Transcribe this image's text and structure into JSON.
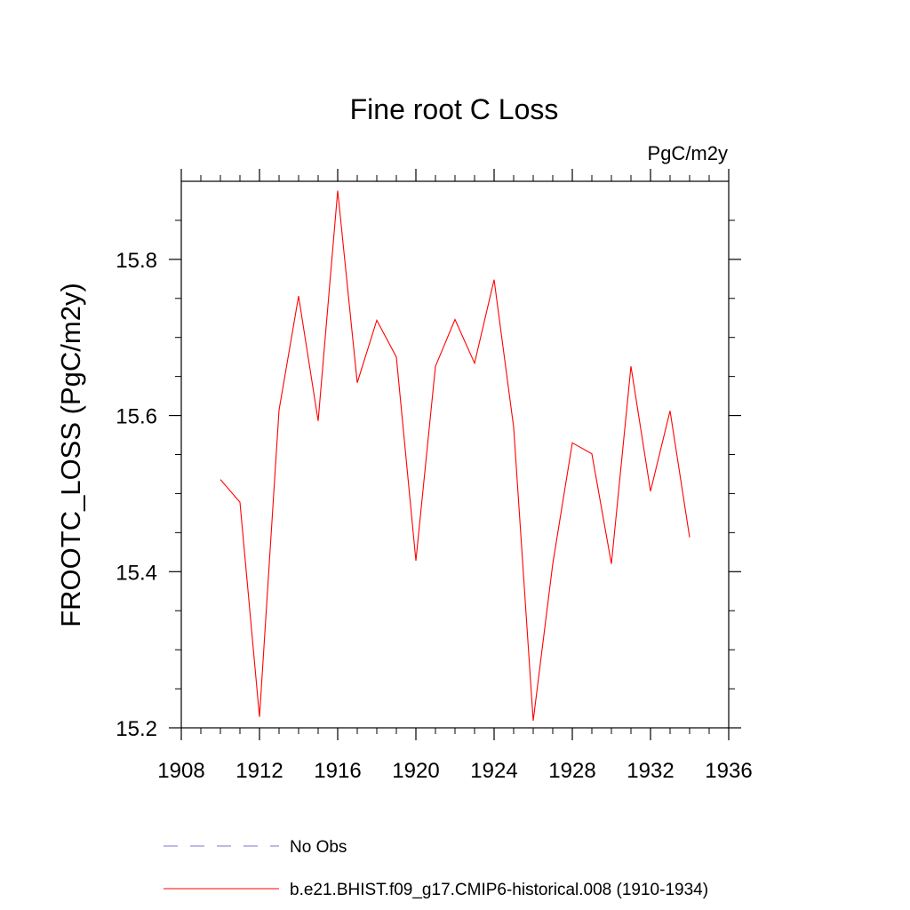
{
  "chart_data": {
    "type": "line",
    "title": "Fine root C Loss",
    "units_label": "PgC/m2y",
    "xlabel": "",
    "ylabel": "FROOTC_LOSS  (PgC/m2y)",
    "xlim": [
      1908,
      1936
    ],
    "ylim": [
      15.2,
      15.9
    ],
    "x_ticks": [
      1908,
      1912,
      1916,
      1920,
      1924,
      1928,
      1932,
      1936
    ],
    "x_tick_labels": [
      "1908",
      "1912",
      "1916",
      "1920",
      "1924",
      "1928",
      "1932",
      "1936"
    ],
    "y_ticks": [
      15.2,
      15.4,
      15.6,
      15.8
    ],
    "y_tick_labels": [
      "15.2",
      "15.4",
      "15.6",
      "15.8"
    ],
    "grid": false,
    "legend_position": "bottom",
    "series": [
      {
        "name": "b.e21.BHIST.f09_g17.CMIP6-historical.008 (1910-1934)",
        "color": "#ff0000",
        "style": "solid",
        "x": [
          1910,
          1911,
          1912,
          1913,
          1914,
          1915,
          1916,
          1917,
          1918,
          1919,
          1920,
          1921,
          1922,
          1923,
          1924,
          1925,
          1926,
          1927,
          1928,
          1929,
          1930,
          1931,
          1932,
          1933,
          1934
        ],
        "y": [
          15.518,
          15.489,
          15.214,
          15.607,
          15.753,
          15.593,
          15.888,
          15.642,
          15.722,
          15.675,
          15.414,
          15.663,
          15.723,
          15.667,
          15.774,
          15.585,
          15.209,
          15.41,
          15.565,
          15.551,
          15.41,
          15.663,
          15.503,
          15.606,
          15.444
        ]
      }
    ],
    "legend": [
      {
        "label": "No Obs",
        "color": "#7777cc",
        "style": "dashed"
      },
      {
        "label": "b.e21.BHIST.f09_g17.CMIP6-historical.008 (1910-1934)",
        "color": "#ff0000",
        "style": "solid"
      }
    ]
  }
}
